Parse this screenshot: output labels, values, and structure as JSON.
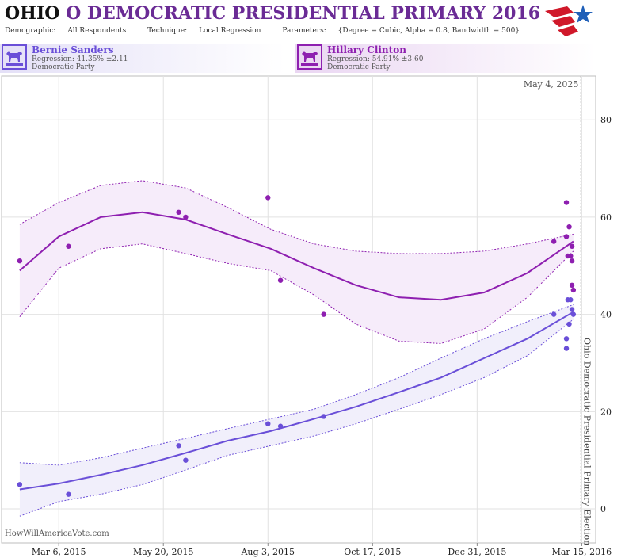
{
  "header": {
    "title_state": "OHIO",
    "title_rest": "O DEMOCRATIC PRESIDENTIAL PRIMARY 2016",
    "demographic_label": "Demographic:",
    "demographic_value": "All Respondents",
    "technique_label": "Technique:",
    "technique_value": "Local Regression",
    "parameters_label": "Parameters:",
    "parameters_value": "{Degree = Cubic, Alpha = 0.8, Bandwidth = 500}"
  },
  "candidates": [
    {
      "name": "Bernie Sanders",
      "regression": "Regression: 41.35% ±2.11",
      "party": "Democratic Party",
      "color": "#6a4fd8"
    },
    {
      "name": "Hillary Clinton",
      "regression": "Regression: 54.91% ±3.60",
      "party": "Democratic Party",
      "color": "#8e1fb0"
    }
  ],
  "watermark": "HowWillAmericaVote.com",
  "colors": {
    "sanders": "#6a4fd8",
    "clinton": "#8e1fb0",
    "sanders_band": "#f1effb",
    "clinton_band": "#f6ecfa",
    "grid": "#e2e2e2"
  },
  "chart_data": {
    "type": "scatter",
    "x_ticks": [
      "Mar 6, 2015",
      "May 20, 2015",
      "Aug 3, 2015",
      "Oct 17, 2015",
      "Dec 31, 2015",
      "Mar 15, 2016"
    ],
    "y_ticks": [
      0,
      20,
      40,
      60,
      80
    ],
    "ylim": [
      -7,
      89
    ],
    "xlim": [
      "2015-01-24",
      "2016-03-25"
    ],
    "grid": true,
    "election_date": "2016-03-15",
    "election_label": "Ohio Democratic Presidential Primary Election",
    "today_label": "May 4, 2025",
    "series": [
      {
        "name": "Bernie Sanders",
        "color": "#6a4fd8",
        "points": [
          [
            "2015-02-06",
            5
          ],
          [
            "2015-03-13",
            3
          ],
          [
            "2015-05-31",
            13
          ],
          [
            "2015-06-05",
            10
          ],
          [
            "2015-08-03",
            17.5
          ],
          [
            "2015-08-12",
            17
          ],
          [
            "2015-09-12",
            19
          ],
          [
            "2016-02-24",
            40
          ],
          [
            "2016-03-04",
            35
          ],
          [
            "2016-03-04",
            33
          ],
          [
            "2016-03-05",
            43
          ],
          [
            "2016-03-06",
            38
          ],
          [
            "2016-03-07",
            43
          ],
          [
            "2016-03-08",
            41
          ],
          [
            "2016-03-09",
            40
          ]
        ],
        "trend": [
          [
            "2015-02-06",
            4
          ],
          [
            "2015-03-06",
            5.2
          ],
          [
            "2015-04-05",
            7
          ],
          [
            "2015-05-05",
            9
          ],
          [
            "2015-06-05",
            11.5
          ],
          [
            "2015-07-05",
            14
          ],
          [
            "2015-08-05",
            16
          ],
          [
            "2015-09-05",
            18.5
          ],
          [
            "2015-10-05",
            21
          ],
          [
            "2015-11-05",
            24
          ],
          [
            "2015-12-05",
            27
          ],
          [
            "2016-01-05",
            31
          ],
          [
            "2016-02-05",
            35
          ],
          [
            "2016-03-09",
            40.5
          ]
        ],
        "upper": [
          [
            "2015-02-06",
            9.5
          ],
          [
            "2015-03-06",
            9
          ],
          [
            "2015-04-05",
            10.5
          ],
          [
            "2015-05-05",
            12.5
          ],
          [
            "2015-06-05",
            14.5
          ],
          [
            "2015-07-05",
            16.5
          ],
          [
            "2015-08-05",
            18.5
          ],
          [
            "2015-09-05",
            20.5
          ],
          [
            "2015-10-05",
            23.5
          ],
          [
            "2015-11-05",
            27
          ],
          [
            "2015-12-05",
            31
          ],
          [
            "2016-01-05",
            35
          ],
          [
            "2016-02-05",
            38.5
          ],
          [
            "2016-03-09",
            42
          ]
        ],
        "lower": [
          [
            "2015-02-06",
            -1.5
          ],
          [
            "2015-03-06",
            1.5
          ],
          [
            "2015-04-05",
            3
          ],
          [
            "2015-05-05",
            5
          ],
          [
            "2015-06-05",
            8
          ],
          [
            "2015-07-05",
            11
          ],
          [
            "2015-08-05",
            13
          ],
          [
            "2015-09-05",
            15
          ],
          [
            "2015-10-05",
            17.5
          ],
          [
            "2015-11-05",
            20.5
          ],
          [
            "2015-12-05",
            23.5
          ],
          [
            "2016-01-05",
            27
          ],
          [
            "2016-02-05",
            31.5
          ],
          [
            "2016-03-09",
            39
          ]
        ]
      },
      {
        "name": "Hillary Clinton",
        "color": "#8e1fb0",
        "points": [
          [
            "2015-02-06",
            51
          ],
          [
            "2015-03-13",
            54
          ],
          [
            "2015-05-31",
            61
          ],
          [
            "2015-06-05",
            60
          ],
          [
            "2015-08-03",
            64
          ],
          [
            "2015-08-12",
            47
          ],
          [
            "2015-09-12",
            40
          ],
          [
            "2016-02-24",
            55
          ],
          [
            "2016-03-04",
            63
          ],
          [
            "2016-03-04",
            56
          ],
          [
            "2016-03-05",
            52
          ],
          [
            "2016-03-06",
            58
          ],
          [
            "2016-03-07",
            52
          ],
          [
            "2016-03-08",
            54
          ],
          [
            "2016-03-08",
            51
          ],
          [
            "2016-03-08",
            46
          ],
          [
            "2016-03-09",
            45
          ]
        ],
        "trend": [
          [
            "2015-02-06",
            49
          ],
          [
            "2015-03-06",
            56
          ],
          [
            "2015-04-05",
            60
          ],
          [
            "2015-05-05",
            61
          ],
          [
            "2015-06-05",
            59.5
          ],
          [
            "2015-07-05",
            56.5
          ],
          [
            "2015-08-05",
            53.5
          ],
          [
            "2015-09-05",
            49.5
          ],
          [
            "2015-10-05",
            46
          ],
          [
            "2015-11-05",
            43.5
          ],
          [
            "2015-12-05",
            43
          ],
          [
            "2016-01-05",
            44.5
          ],
          [
            "2016-02-05",
            48.5
          ],
          [
            "2016-03-09",
            55
          ]
        ],
        "upper": [
          [
            "2015-02-06",
            58.5
          ],
          [
            "2015-03-06",
            63
          ],
          [
            "2015-04-05",
            66.5
          ],
          [
            "2015-05-05",
            67.5
          ],
          [
            "2015-06-05",
            66
          ],
          [
            "2015-07-05",
            62
          ],
          [
            "2015-08-05",
            57.5
          ],
          [
            "2015-09-05",
            54.5
          ],
          [
            "2015-10-05",
            53
          ],
          [
            "2015-11-05",
            52.5
          ],
          [
            "2015-12-05",
            52.5
          ],
          [
            "2016-01-05",
            53
          ],
          [
            "2016-02-05",
            54.5
          ],
          [
            "2016-03-09",
            56.5
          ]
        ],
        "lower": [
          [
            "2015-02-06",
            39.5
          ],
          [
            "2015-03-06",
            49.5
          ],
          [
            "2015-04-05",
            53.5
          ],
          [
            "2015-05-05",
            54.5
          ],
          [
            "2015-06-05",
            52.5
          ],
          [
            "2015-07-05",
            50.5
          ],
          [
            "2015-08-05",
            49
          ],
          [
            "2015-09-05",
            44
          ],
          [
            "2015-10-05",
            38
          ],
          [
            "2015-11-05",
            34.5
          ],
          [
            "2015-12-05",
            34
          ],
          [
            "2016-01-05",
            37
          ],
          [
            "2016-02-05",
            43.5
          ],
          [
            "2016-03-09",
            53
          ]
        ]
      }
    ]
  }
}
